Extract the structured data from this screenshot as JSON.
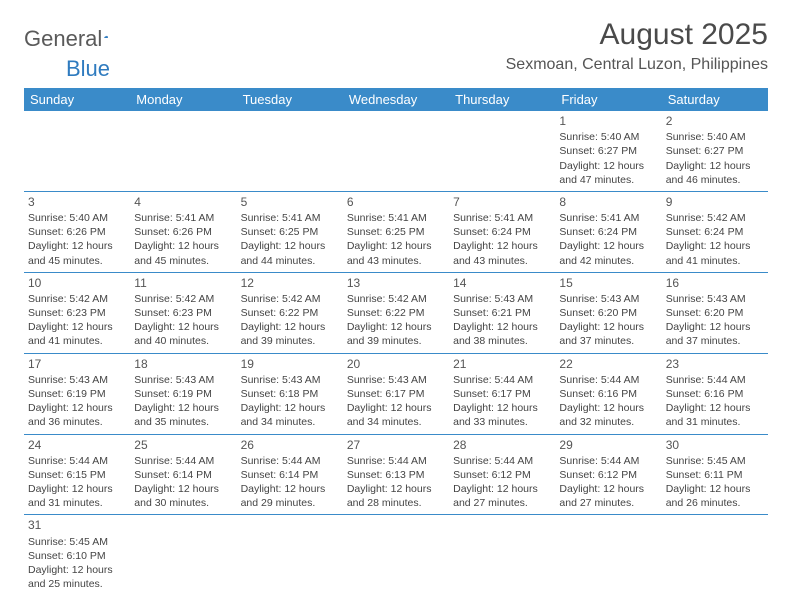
{
  "logo": {
    "text_general": "General",
    "text_blue": "Blue"
  },
  "header": {
    "month_title": "August 2025",
    "location": "Sexmoan, Central Luzon, Philippines"
  },
  "calendar": {
    "day_headers": [
      "Sunday",
      "Monday",
      "Tuesday",
      "Wednesday",
      "Thursday",
      "Friday",
      "Saturday"
    ],
    "header_bg": "#3a8bc9",
    "header_fg": "#ffffff",
    "cell_border_color": "#3a8bc9",
    "weeks": [
      [
        null,
        null,
        null,
        null,
        null,
        {
          "n": "1",
          "sunrise": "Sunrise: 5:40 AM",
          "sunset": "Sunset: 6:27 PM",
          "day1": "Daylight: 12 hours",
          "day2": "and 47 minutes."
        },
        {
          "n": "2",
          "sunrise": "Sunrise: 5:40 AM",
          "sunset": "Sunset: 6:27 PM",
          "day1": "Daylight: 12 hours",
          "day2": "and 46 minutes."
        }
      ],
      [
        {
          "n": "3",
          "sunrise": "Sunrise: 5:40 AM",
          "sunset": "Sunset: 6:26 PM",
          "day1": "Daylight: 12 hours",
          "day2": "and 45 minutes."
        },
        {
          "n": "4",
          "sunrise": "Sunrise: 5:41 AM",
          "sunset": "Sunset: 6:26 PM",
          "day1": "Daylight: 12 hours",
          "day2": "and 45 minutes."
        },
        {
          "n": "5",
          "sunrise": "Sunrise: 5:41 AM",
          "sunset": "Sunset: 6:25 PM",
          "day1": "Daylight: 12 hours",
          "day2": "and 44 minutes."
        },
        {
          "n": "6",
          "sunrise": "Sunrise: 5:41 AM",
          "sunset": "Sunset: 6:25 PM",
          "day1": "Daylight: 12 hours",
          "day2": "and 43 minutes."
        },
        {
          "n": "7",
          "sunrise": "Sunrise: 5:41 AM",
          "sunset": "Sunset: 6:24 PM",
          "day1": "Daylight: 12 hours",
          "day2": "and 43 minutes."
        },
        {
          "n": "8",
          "sunrise": "Sunrise: 5:41 AM",
          "sunset": "Sunset: 6:24 PM",
          "day1": "Daylight: 12 hours",
          "day2": "and 42 minutes."
        },
        {
          "n": "9",
          "sunrise": "Sunrise: 5:42 AM",
          "sunset": "Sunset: 6:24 PM",
          "day1": "Daylight: 12 hours",
          "day2": "and 41 minutes."
        }
      ],
      [
        {
          "n": "10",
          "sunrise": "Sunrise: 5:42 AM",
          "sunset": "Sunset: 6:23 PM",
          "day1": "Daylight: 12 hours",
          "day2": "and 41 minutes."
        },
        {
          "n": "11",
          "sunrise": "Sunrise: 5:42 AM",
          "sunset": "Sunset: 6:23 PM",
          "day1": "Daylight: 12 hours",
          "day2": "and 40 minutes."
        },
        {
          "n": "12",
          "sunrise": "Sunrise: 5:42 AM",
          "sunset": "Sunset: 6:22 PM",
          "day1": "Daylight: 12 hours",
          "day2": "and 39 minutes."
        },
        {
          "n": "13",
          "sunrise": "Sunrise: 5:42 AM",
          "sunset": "Sunset: 6:22 PM",
          "day1": "Daylight: 12 hours",
          "day2": "and 39 minutes."
        },
        {
          "n": "14",
          "sunrise": "Sunrise: 5:43 AM",
          "sunset": "Sunset: 6:21 PM",
          "day1": "Daylight: 12 hours",
          "day2": "and 38 minutes."
        },
        {
          "n": "15",
          "sunrise": "Sunrise: 5:43 AM",
          "sunset": "Sunset: 6:20 PM",
          "day1": "Daylight: 12 hours",
          "day2": "and 37 minutes."
        },
        {
          "n": "16",
          "sunrise": "Sunrise: 5:43 AM",
          "sunset": "Sunset: 6:20 PM",
          "day1": "Daylight: 12 hours",
          "day2": "and 37 minutes."
        }
      ],
      [
        {
          "n": "17",
          "sunrise": "Sunrise: 5:43 AM",
          "sunset": "Sunset: 6:19 PM",
          "day1": "Daylight: 12 hours",
          "day2": "and 36 minutes."
        },
        {
          "n": "18",
          "sunrise": "Sunrise: 5:43 AM",
          "sunset": "Sunset: 6:19 PM",
          "day1": "Daylight: 12 hours",
          "day2": "and 35 minutes."
        },
        {
          "n": "19",
          "sunrise": "Sunrise: 5:43 AM",
          "sunset": "Sunset: 6:18 PM",
          "day1": "Daylight: 12 hours",
          "day2": "and 34 minutes."
        },
        {
          "n": "20",
          "sunrise": "Sunrise: 5:43 AM",
          "sunset": "Sunset: 6:17 PM",
          "day1": "Daylight: 12 hours",
          "day2": "and 34 minutes."
        },
        {
          "n": "21",
          "sunrise": "Sunrise: 5:44 AM",
          "sunset": "Sunset: 6:17 PM",
          "day1": "Daylight: 12 hours",
          "day2": "and 33 minutes."
        },
        {
          "n": "22",
          "sunrise": "Sunrise: 5:44 AM",
          "sunset": "Sunset: 6:16 PM",
          "day1": "Daylight: 12 hours",
          "day2": "and 32 minutes."
        },
        {
          "n": "23",
          "sunrise": "Sunrise: 5:44 AM",
          "sunset": "Sunset: 6:16 PM",
          "day1": "Daylight: 12 hours",
          "day2": "and 31 minutes."
        }
      ],
      [
        {
          "n": "24",
          "sunrise": "Sunrise: 5:44 AM",
          "sunset": "Sunset: 6:15 PM",
          "day1": "Daylight: 12 hours",
          "day2": "and 31 minutes."
        },
        {
          "n": "25",
          "sunrise": "Sunrise: 5:44 AM",
          "sunset": "Sunset: 6:14 PM",
          "day1": "Daylight: 12 hours",
          "day2": "and 30 minutes."
        },
        {
          "n": "26",
          "sunrise": "Sunrise: 5:44 AM",
          "sunset": "Sunset: 6:14 PM",
          "day1": "Daylight: 12 hours",
          "day2": "and 29 minutes."
        },
        {
          "n": "27",
          "sunrise": "Sunrise: 5:44 AM",
          "sunset": "Sunset: 6:13 PM",
          "day1": "Daylight: 12 hours",
          "day2": "and 28 minutes."
        },
        {
          "n": "28",
          "sunrise": "Sunrise: 5:44 AM",
          "sunset": "Sunset: 6:12 PM",
          "day1": "Daylight: 12 hours",
          "day2": "and 27 minutes."
        },
        {
          "n": "29",
          "sunrise": "Sunrise: 5:44 AM",
          "sunset": "Sunset: 6:12 PM",
          "day1": "Daylight: 12 hours",
          "day2": "and 27 minutes."
        },
        {
          "n": "30",
          "sunrise": "Sunrise: 5:45 AM",
          "sunset": "Sunset: 6:11 PM",
          "day1": "Daylight: 12 hours",
          "day2": "and 26 minutes."
        }
      ],
      [
        {
          "n": "31",
          "sunrise": "Sunrise: 5:45 AM",
          "sunset": "Sunset: 6:10 PM",
          "day1": "Daylight: 12 hours",
          "day2": "and 25 minutes."
        },
        null,
        null,
        null,
        null,
        null,
        null
      ]
    ]
  }
}
